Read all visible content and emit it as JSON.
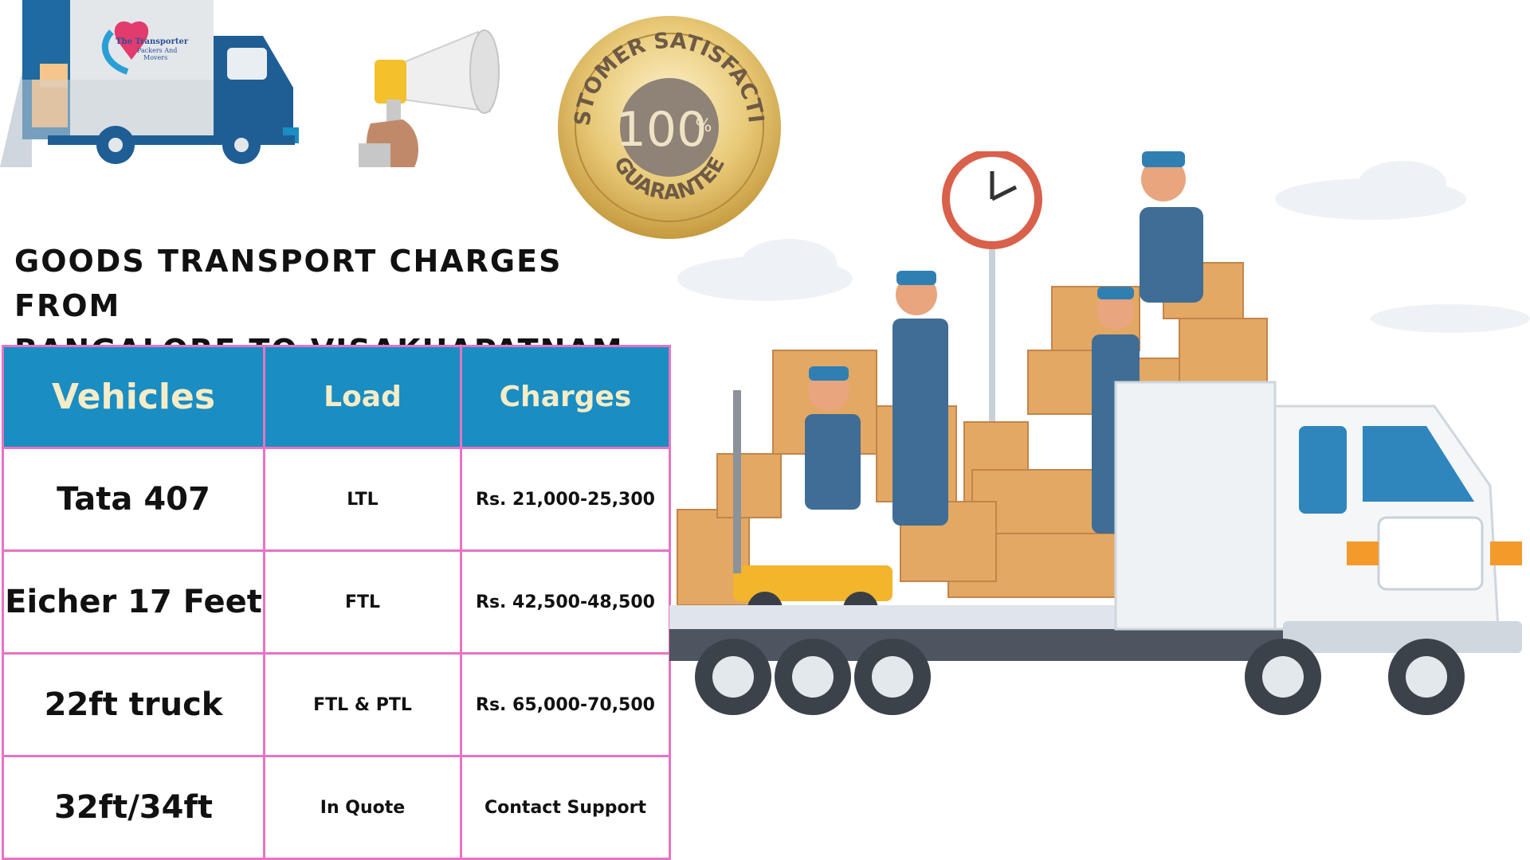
{
  "logo": {
    "line1": "The Transporter",
    "line2": "Packers And",
    "line3": "Movers"
  },
  "badge": {
    "top_text": "CUSTOMER SATISFACTION",
    "number": "100",
    "percent": "%",
    "bottom_text": "GUARANTEE"
  },
  "title": {
    "line1": "GOODS TRANSPORT CHARGES FROM",
    "line2": "BANGALORE TO VISAKHAPATNAM"
  },
  "table": {
    "headers": [
      "Vehicles",
      "Load",
      "Charges"
    ],
    "rows": [
      {
        "vehicle": "Tata 407",
        "load": "LTL",
        "charges": "Rs. 21,000-25,300"
      },
      {
        "vehicle": "Eicher 17 Feet",
        "load": "FTL",
        "charges": "Rs. 42,500-48,500"
      },
      {
        "vehicle": "22ft truck",
        "load": "FTL & PTL",
        "charges": "Rs. 65,000-70,500"
      },
      {
        "vehicle": "32ft/34ft",
        "load": "In Quote",
        "charges": "Contact Support"
      }
    ]
  },
  "colors": {
    "header_bg": "#1a8dc2",
    "header_text": "#f5ecc8",
    "table_border": "#e773c4"
  },
  "icons": [
    "moving-truck-logo-icon",
    "megaphone-icon",
    "satisfaction-badge-icon",
    "movers-truck-illustration-icon"
  ]
}
